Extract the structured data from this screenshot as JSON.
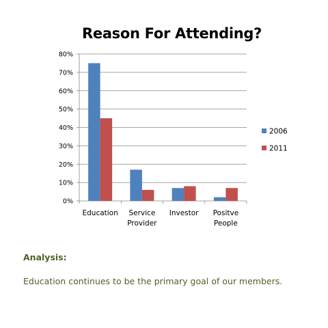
{
  "chart_data": {
    "type": "bar",
    "title": "Reason For Attending?",
    "categories": [
      [
        "Education"
      ],
      [
        "Service",
        "Provider"
      ],
      [
        "Investor"
      ],
      [
        "Positve",
        "People"
      ]
    ],
    "series": [
      {
        "name": "2006",
        "color": "#4f81bd",
        "values": [
          75,
          17,
          7,
          2
        ]
      },
      {
        "name": "2011",
        "color": "#c0504d",
        "values": [
          45,
          6,
          8,
          7
        ]
      }
    ],
    "ylim": [
      0,
      80
    ],
    "yticks": [
      "0%",
      "10%",
      "20%",
      "30%",
      "40%",
      "50%",
      "60%",
      "70%",
      "80%"
    ],
    "grid": true,
    "legend": "right"
  },
  "analysis": {
    "label": "Analysis:",
    "text": "Education continues to be the primary goal of our members."
  }
}
